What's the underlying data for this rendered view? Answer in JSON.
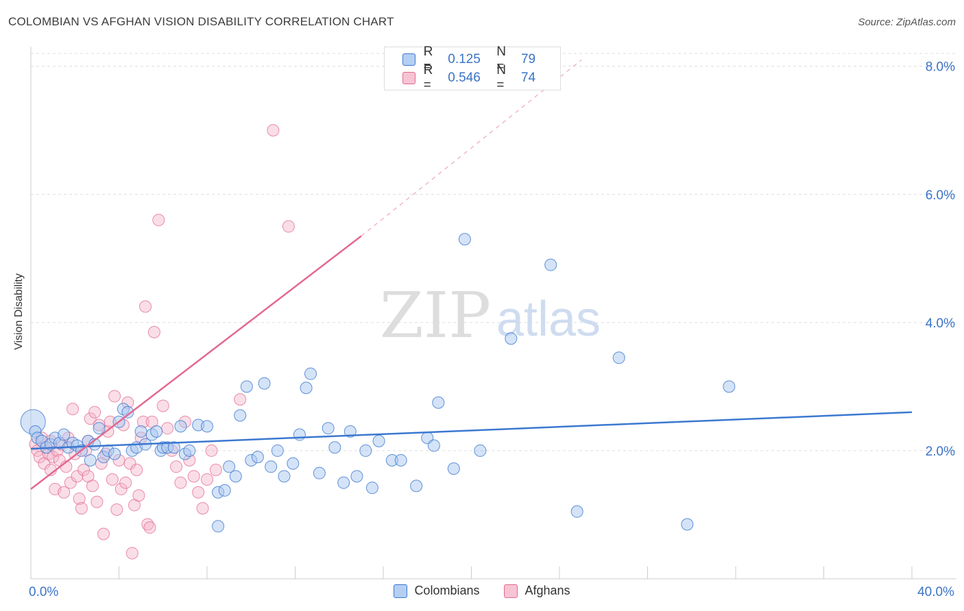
{
  "header": {
    "title": "COLOMBIAN VS AFGHAN VISION DISABILITY CORRELATION CHART",
    "source": "Source: ZipAtlas.com"
  },
  "watermark": {
    "zip": "ZIP",
    "atlas": "atlas"
  },
  "legend": {
    "rows": [
      {
        "r_key": "R =",
        "r_value": "0.125",
        "n_key": "N =",
        "n_value": "79"
      },
      {
        "r_key": "R =",
        "r_value": "0.546",
        "n_key": "N =",
        "n_value": "74"
      }
    ]
  },
  "colors": {
    "colombians": "#3b78d0",
    "colombians_fill": "#a9c8ef",
    "afghans": "#e3688f",
    "afghans_fill": "#f4b6c9",
    "axis_text": "#3b73c7",
    "grid": "#dcdcdc"
  },
  "chart_data": {
    "type": "scatter",
    "title": "COLOMBIAN VS AFGHAN VISION DISABILITY CORRELATION CHART",
    "xlabel": "",
    "ylabel": "Vision Disability",
    "xlim": [
      0,
      40
    ],
    "ylim": [
      0,
      8.2
    ],
    "x_ticks_labeled": [
      {
        "value": 0,
        "label": "0.0%"
      },
      {
        "value": 40,
        "label": "40.0%"
      }
    ],
    "y_ticks": [
      {
        "value": 2,
        "label": "2.0%"
      },
      {
        "value": 4,
        "label": "4.0%"
      },
      {
        "value": 6,
        "label": "6.0%"
      },
      {
        "value": 8,
        "label": "8.0%"
      }
    ],
    "grid": true,
    "legend_position": "top-center",
    "series": [
      {
        "name": "Colombians",
        "R": 0.125,
        "N": 79,
        "trend": {
          "x0": 0,
          "y0": 2.03,
          "x1": 40,
          "y1": 2.6
        },
        "points": [
          [
            0.1,
            2.45
          ],
          [
            0.2,
            2.3
          ],
          [
            0.3,
            2.2
          ],
          [
            0.5,
            2.15
          ],
          [
            0.7,
            2.05
          ],
          [
            0.9,
            2.1
          ],
          [
            1.1,
            2.2
          ],
          [
            1.3,
            2.12
          ],
          [
            1.5,
            2.25
          ],
          [
            1.7,
            2.05
          ],
          [
            1.9,
            2.12
          ],
          [
            2.1,
            2.08
          ],
          [
            2.3,
            2.0
          ],
          [
            2.6,
            2.15
          ],
          [
            2.7,
            1.85
          ],
          [
            2.9,
            2.1
          ],
          [
            3.1,
            2.35
          ],
          [
            3.3,
            1.9
          ],
          [
            3.5,
            2.0
          ],
          [
            3.8,
            1.95
          ],
          [
            4.0,
            2.45
          ],
          [
            4.2,
            2.65
          ],
          [
            4.4,
            2.6
          ],
          [
            4.6,
            2.0
          ],
          [
            4.8,
            2.05
          ],
          [
            5.0,
            2.3
          ],
          [
            5.2,
            2.1
          ],
          [
            5.5,
            2.25
          ],
          [
            5.7,
            2.3
          ],
          [
            5.9,
            2.0
          ],
          [
            6.0,
            2.05
          ],
          [
            6.2,
            2.05
          ],
          [
            6.5,
            2.05
          ],
          [
            6.8,
            2.38
          ],
          [
            7.0,
            1.95
          ],
          [
            7.2,
            2.0
          ],
          [
            7.6,
            2.4
          ],
          [
            8.0,
            2.38
          ],
          [
            8.5,
            1.35
          ],
          [
            8.8,
            1.38
          ],
          [
            9.0,
            1.75
          ],
          [
            9.3,
            1.6
          ],
          [
            9.5,
            2.55
          ],
          [
            9.8,
            3.0
          ],
          [
            10.0,
            1.85
          ],
          [
            10.3,
            1.9
          ],
          [
            10.6,
            3.05
          ],
          [
            10.9,
            1.75
          ],
          [
            11.2,
            2.0
          ],
          [
            11.5,
            1.6
          ],
          [
            11.9,
            1.8
          ],
          [
            12.2,
            2.25
          ],
          [
            12.5,
            2.98
          ],
          [
            12.7,
            3.2
          ],
          [
            13.1,
            1.65
          ],
          [
            13.5,
            2.35
          ],
          [
            13.8,
            2.05
          ],
          [
            14.2,
            1.5
          ],
          [
            14.5,
            2.3
          ],
          [
            14.8,
            1.6
          ],
          [
            15.2,
            2.0
          ],
          [
            15.5,
            1.42
          ],
          [
            15.8,
            2.15
          ],
          [
            16.4,
            1.85
          ],
          [
            16.8,
            1.85
          ],
          [
            17.5,
            1.45
          ],
          [
            18.0,
            2.2
          ],
          [
            18.3,
            2.08
          ],
          [
            18.5,
            2.75
          ],
          [
            19.2,
            1.72
          ],
          [
            19.7,
            5.3
          ],
          [
            20.4,
            2.0
          ],
          [
            21.8,
            3.75
          ],
          [
            23.6,
            4.9
          ],
          [
            24.8,
            1.05
          ],
          [
            26.7,
            3.45
          ],
          [
            29.8,
            0.85
          ],
          [
            31.7,
            3.0
          ],
          [
            8.5,
            0.82
          ]
        ]
      },
      {
        "name": "Afghans",
        "R": 0.546,
        "N": 74,
        "trend": {
          "x0": 0,
          "y0": 1.4,
          "x1": 15,
          "y1": 5.35,
          "dashed_to": {
            "x": 25,
            "y": 8.1
          }
        },
        "points": [
          [
            0.2,
            2.1
          ],
          [
            0.3,
            2.0
          ],
          [
            0.4,
            1.9
          ],
          [
            0.5,
            2.2
          ],
          [
            0.6,
            1.8
          ],
          [
            0.7,
            2.05
          ],
          [
            0.8,
            1.95
          ],
          [
            0.9,
            2.15
          ],
          [
            1.0,
            1.9
          ],
          [
            1.1,
            1.4
          ],
          [
            1.2,
            2.0
          ],
          [
            1.3,
            1.85
          ],
          [
            1.4,
            2.1
          ],
          [
            1.5,
            1.35
          ],
          [
            1.6,
            1.75
          ],
          [
            1.7,
            2.2
          ],
          [
            1.8,
            1.5
          ],
          [
            1.9,
            2.65
          ],
          [
            2.0,
            1.95
          ],
          [
            2.1,
            1.6
          ],
          [
            2.2,
            1.25
          ],
          [
            2.3,
            1.1
          ],
          [
            2.4,
            1.7
          ],
          [
            2.5,
            2.0
          ],
          [
            2.6,
            1.6
          ],
          [
            2.7,
            2.5
          ],
          [
            2.8,
            1.45
          ],
          [
            2.9,
            2.6
          ],
          [
            3.0,
            1.2
          ],
          [
            3.1,
            2.4
          ],
          [
            3.2,
            1.8
          ],
          [
            3.3,
            0.7
          ],
          [
            3.4,
            1.95
          ],
          [
            3.5,
            2.3
          ],
          [
            3.6,
            2.45
          ],
          [
            3.7,
            1.55
          ],
          [
            3.8,
            2.85
          ],
          [
            3.9,
            1.08
          ],
          [
            4.0,
            1.85
          ],
          [
            4.1,
            1.4
          ],
          [
            4.2,
            2.4
          ],
          [
            4.3,
            1.5
          ],
          [
            4.4,
            2.75
          ],
          [
            4.5,
            1.8
          ],
          [
            4.6,
            0.4
          ],
          [
            4.7,
            1.15
          ],
          [
            4.8,
            1.7
          ],
          [
            4.9,
            1.3
          ],
          [
            5.0,
            2.2
          ],
          [
            5.1,
            2.45
          ],
          [
            5.2,
            4.25
          ],
          [
            5.3,
            0.85
          ],
          [
            5.4,
            0.8
          ],
          [
            5.5,
            2.45
          ],
          [
            5.6,
            3.85
          ],
          [
            5.8,
            5.6
          ],
          [
            6.0,
            2.7
          ],
          [
            6.2,
            2.35
          ],
          [
            6.4,
            2.0
          ],
          [
            6.6,
            1.75
          ],
          [
            6.8,
            1.5
          ],
          [
            7.0,
            2.45
          ],
          [
            7.2,
            1.85
          ],
          [
            7.4,
            1.6
          ],
          [
            7.6,
            1.35
          ],
          [
            7.8,
            1.1
          ],
          [
            8.0,
            1.55
          ],
          [
            8.2,
            2.0
          ],
          [
            8.4,
            1.7
          ],
          [
            9.5,
            2.8
          ],
          [
            11.0,
            7.0
          ],
          [
            11.7,
            5.5
          ],
          [
            0.9,
            1.7
          ],
          [
            2.6,
            2.15
          ]
        ]
      }
    ]
  },
  "bottom_legend": {
    "colombians_label": "Colombians",
    "afghans_label": "Afghans"
  }
}
